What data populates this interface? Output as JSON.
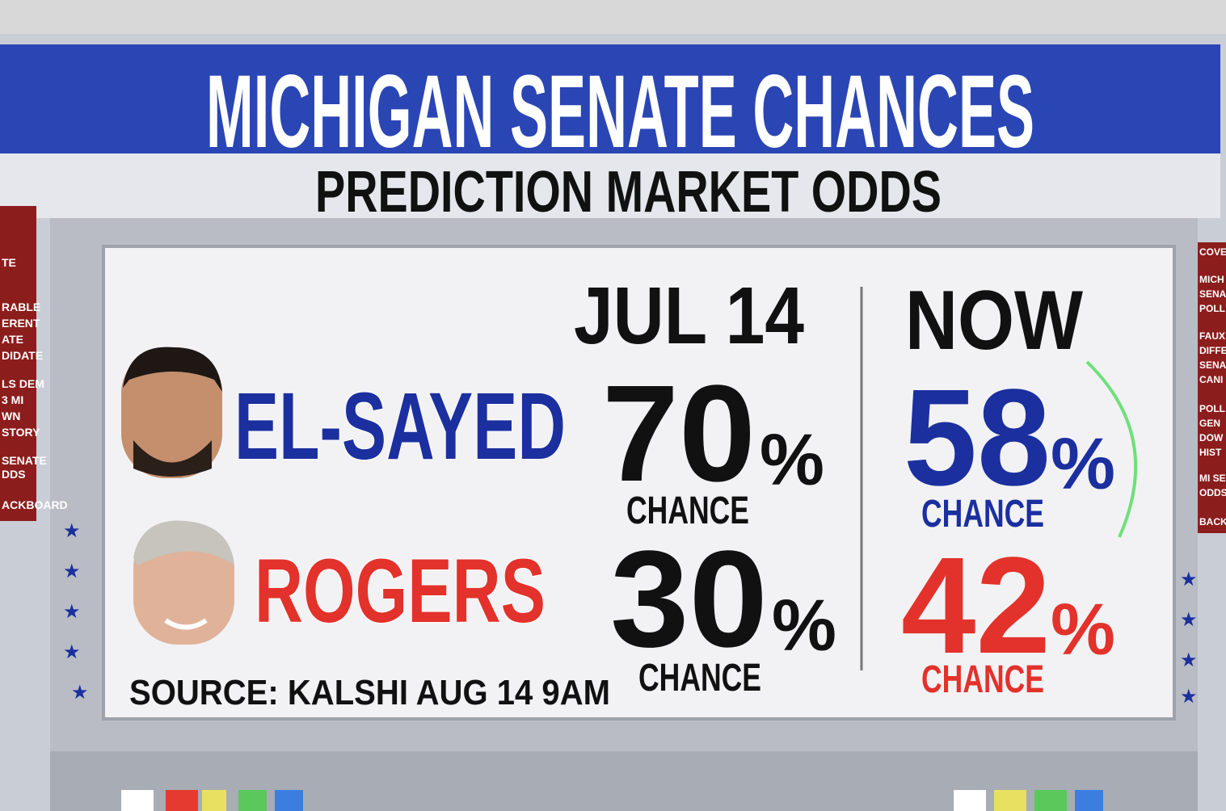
{
  "header": {
    "title": "MICHIGAN SENATE CHANCES",
    "subtitle": "PREDICTION MARKET ODDS"
  },
  "table": {
    "columns": [
      "JUL 14",
      "NOW"
    ],
    "rows": [
      {
        "name": "EL-SAYED",
        "color": "#1b2f9f",
        "cells": [
          {
            "value": 70,
            "unit": "%",
            "label": "CHANCE"
          },
          {
            "value": 58,
            "unit": "%",
            "label": "CHANCE"
          }
        ]
      },
      {
        "name": "ROGERS",
        "color": "#e2322b",
        "cells": [
          {
            "value": 30,
            "unit": "%",
            "label": "CHANCE"
          },
          {
            "value": 42,
            "unit": "%",
            "label": "CHANCE"
          }
        ]
      }
    ]
  },
  "source": "SOURCE: KALSHI AUG 14 9AM",
  "left_sidebar": [
    "TE",
    "RABLE",
    "ERENT",
    "ATE",
    "DIDATE",
    "LS DEM",
    "3 MI",
    "WN",
    "STORY",
    "SENATE",
    "DDS",
    "ACKBOARD"
  ],
  "right_sidebar": [
    "COVE",
    "MICH",
    "SENA",
    "POLL",
    "FAUX",
    "DIFFE",
    "SENA",
    "CANI",
    "POLL",
    "GEN",
    "DOW",
    "HIST",
    "MI SE",
    "ODDS",
    "BACK"
  ]
}
